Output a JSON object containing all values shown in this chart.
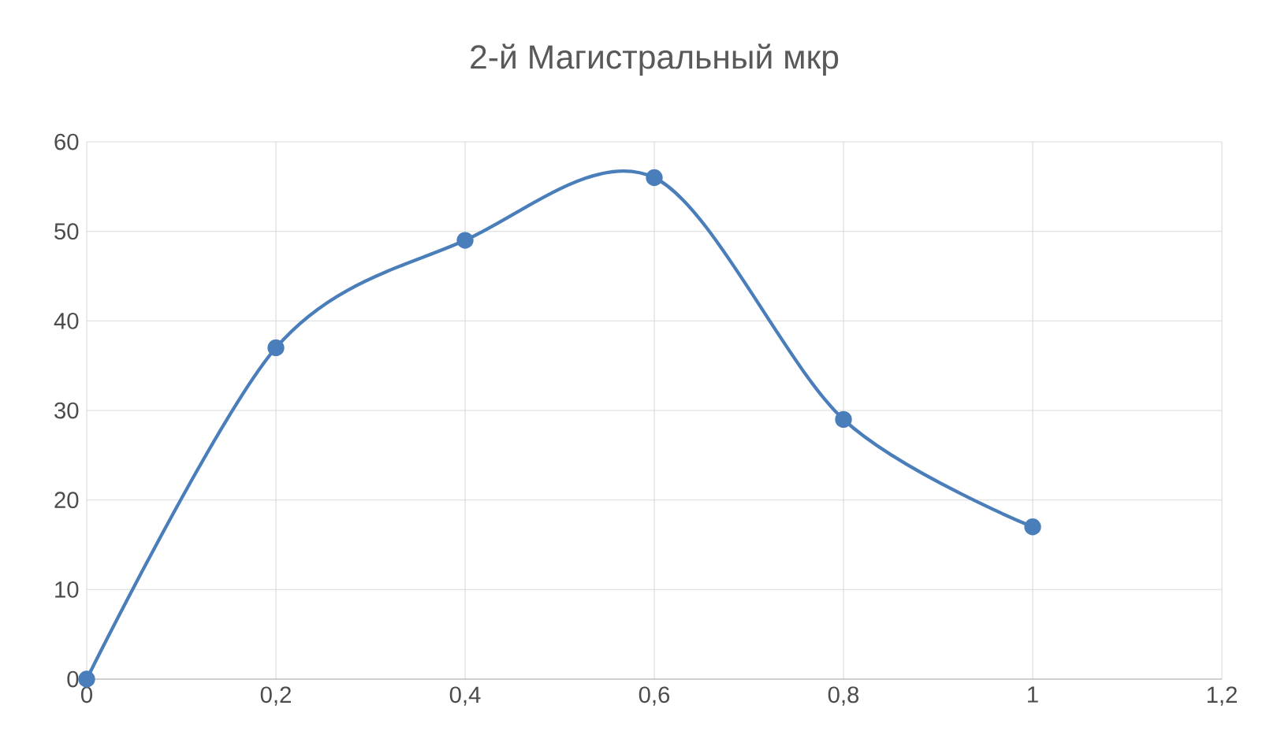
{
  "chart_data": {
    "type": "line",
    "title": "2-й Магистральный мкр",
    "x": [
      0,
      0.2,
      0.4,
      0.6,
      0.8,
      1
    ],
    "series": [
      {
        "color": "#4a7ebb",
        "values": [
          0,
          37,
          49,
          56,
          29,
          17
        ]
      }
    ],
    "xlim": [
      0,
      1.2
    ],
    "xticks": [
      {
        "value": 0,
        "label": "0"
      },
      {
        "value": 0.2,
        "label": "0,2"
      },
      {
        "value": 0.4,
        "label": "0,4"
      },
      {
        "value": 0.6,
        "label": "0,6"
      },
      {
        "value": 0.8,
        "label": "0,8"
      },
      {
        "value": 1,
        "label": "1"
      },
      {
        "value": 1.2,
        "label": "1,2"
      }
    ],
    "ylim": [
      0,
      60
    ],
    "yticks": [
      0,
      10,
      20,
      30,
      40,
      50,
      60
    ],
    "grid": true,
    "marker": "circle",
    "line_style": "solid"
  }
}
